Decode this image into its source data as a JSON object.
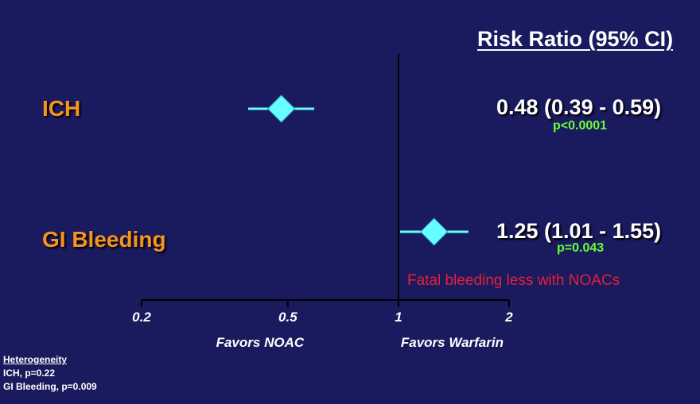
{
  "header": {
    "title": "Risk Ratio (95% CI)"
  },
  "chart_data": {
    "type": "forest",
    "scale": "log",
    "xlim": [
      0.2,
      2
    ],
    "ticks": [
      0.2,
      0.5,
      1,
      2
    ],
    "tick_labels": [
      "0.2",
      "0.5",
      "1",
      "2"
    ],
    "reference_line": 1,
    "xlabel_left": "Favors NOAC",
    "xlabel_right": "Favors Warfarin",
    "rows": [
      {
        "label": "ICH",
        "rr": 0.48,
        "ci_low": 0.39,
        "ci_high": 0.59,
        "rr_text": "0.48 (0.39 - 0.59)",
        "p_text": "p<0.0001"
      },
      {
        "label": "GI Bleeding",
        "rr": 1.25,
        "ci_low": 1.01,
        "ci_high": 1.55,
        "rr_text": "1.25 (1.01 - 1.55)",
        "p_text": "p=0.043"
      }
    ],
    "annotation": "Fatal bleeding less with NOACs"
  },
  "heterogeneity": {
    "title": "Heterogeneity",
    "lines": [
      "ICH, p=0.22",
      "GI Bleeding, p=0.009"
    ]
  },
  "colors": {
    "background": "#1a1a5e",
    "marker": "#66ffff",
    "row_label": "#f7941d",
    "p_value": "#66ff33",
    "annotation": "#e8203a",
    "axis": "#000000"
  }
}
